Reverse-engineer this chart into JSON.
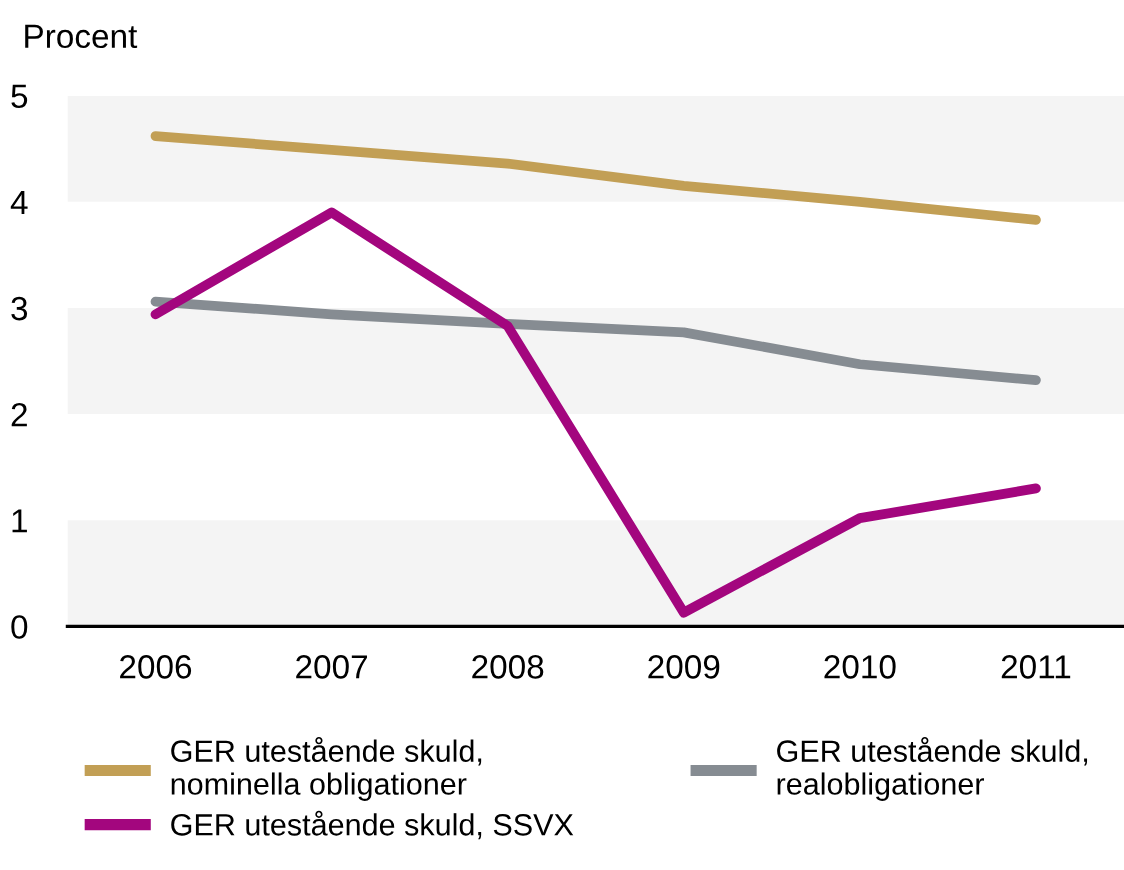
{
  "chart_data": {
    "type": "line",
    "ylabel": "Procent",
    "categories": [
      "2006",
      "2007",
      "2008",
      "2009",
      "2010",
      "2011"
    ],
    "series": [
      {
        "name": "GER utestående skuld, nominella obligationer",
        "color": "#c29f55",
        "values": [
          4.62,
          4.49,
          4.36,
          4.15,
          4.0,
          3.83
        ]
      },
      {
        "name": "GER utestående skuld, realobligationer",
        "color": "#868c92",
        "values": [
          3.06,
          2.94,
          2.85,
          2.77,
          2.47,
          2.32
        ]
      },
      {
        "name": "GER utestående skuld, SSVX",
        "color": "#a3067e",
        "values": [
          2.94,
          3.9,
          2.83,
          0.13,
          1.02,
          1.3
        ]
      }
    ],
    "ylim": [
      0,
      5
    ],
    "yticks": [
      0,
      1,
      2,
      3,
      4,
      5
    ],
    "bands": [
      {
        "axis": "y",
        "from": 0,
        "to": 1,
        "color": "#f4f4f4"
      },
      {
        "axis": "y",
        "from": 2,
        "to": 3,
        "color": "#f4f4f4"
      },
      {
        "axis": "y",
        "from": 4,
        "to": 5,
        "color": "#f4f4f4"
      }
    ],
    "grid": false,
    "legend": "bottom",
    "marker": "none",
    "line_style": "solid"
  }
}
